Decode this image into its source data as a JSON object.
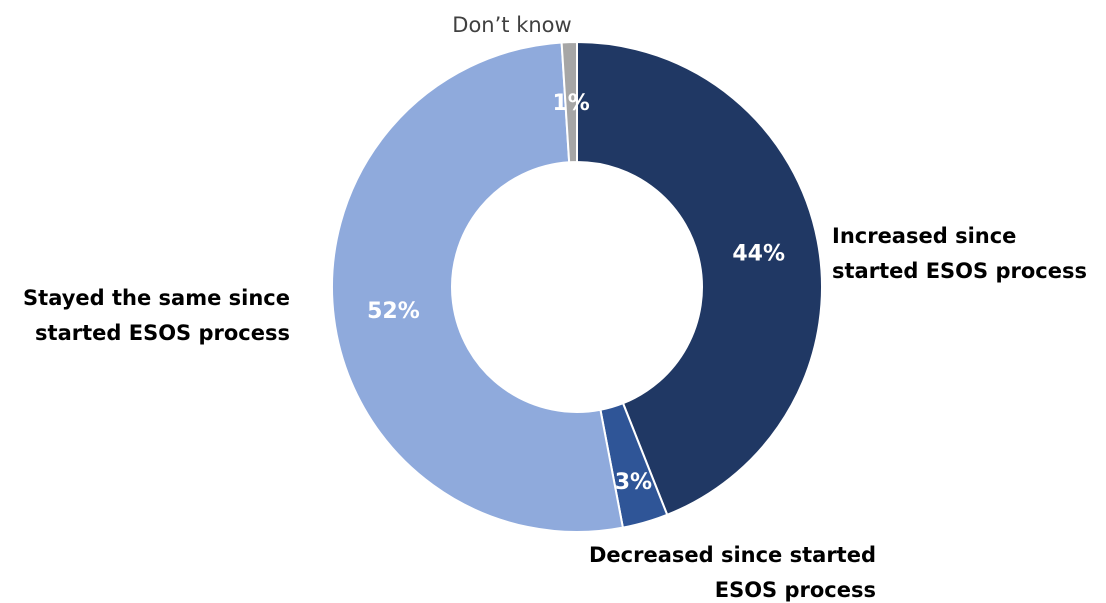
{
  "chart_data": {
    "type": "pie",
    "subtype": "donut",
    "title": "",
    "categories": [
      "Increased since started ESOS process",
      "Decreased since started ESOS process",
      "Stayed the same since started ESOS process",
      "Don’t know"
    ],
    "values": [
      44,
      3,
      52,
      1
    ],
    "value_labels": [
      "44%",
      "3%",
      "52%",
      "1%"
    ],
    "label_lines": [
      [
        "Increased since",
        "started ESOS process"
      ],
      [
        "Decreased since started",
        "ESOS process"
      ],
      [
        "Stayed the same since",
        "started ESOS process"
      ],
      [
        "Don’t know"
      ]
    ],
    "colors": [
      "#203864",
      "#2f5597",
      "#8faadc",
      "#a6a6a6"
    ],
    "start_angle": "12 o'clock",
    "direction": "clockwise",
    "legend": "none (labels next to slices)"
  }
}
